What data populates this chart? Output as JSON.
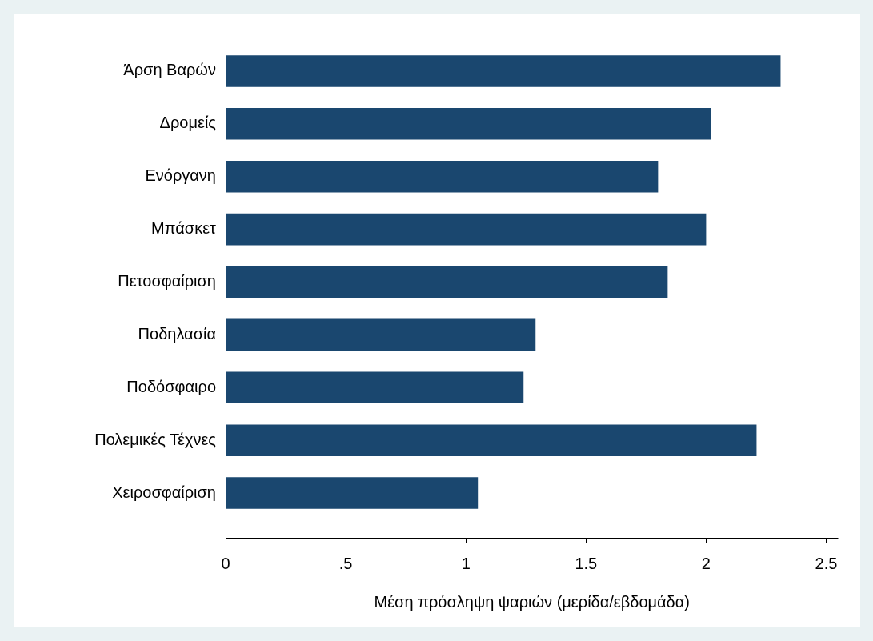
{
  "chart_data": {
    "type": "bar",
    "orientation": "horizontal",
    "xlabel": "Μέση πρόσληψη ψαριών (μερίδα/εβδομάδα)",
    "categories": [
      "Άρση Βαρών",
      "Δρομείς",
      "Ενόργανη",
      "Μπάσκετ",
      "Πετοσφαίριση",
      "Ποδηλασία",
      "Ποδόσφαιρο",
      "Πολεμικές Τέχνες",
      "Χειροσφαίριση"
    ],
    "values": [
      2.31,
      2.02,
      1.8,
      2.0,
      1.84,
      1.29,
      1.24,
      2.21,
      1.05
    ],
    "color": "#1a476f",
    "xlim": [
      0,
      2.55
    ],
    "xticks": [
      0,
      {
        "value": 0.5,
        "label": ".5"
      },
      1,
      1.5,
      2,
      2.5
    ]
  }
}
